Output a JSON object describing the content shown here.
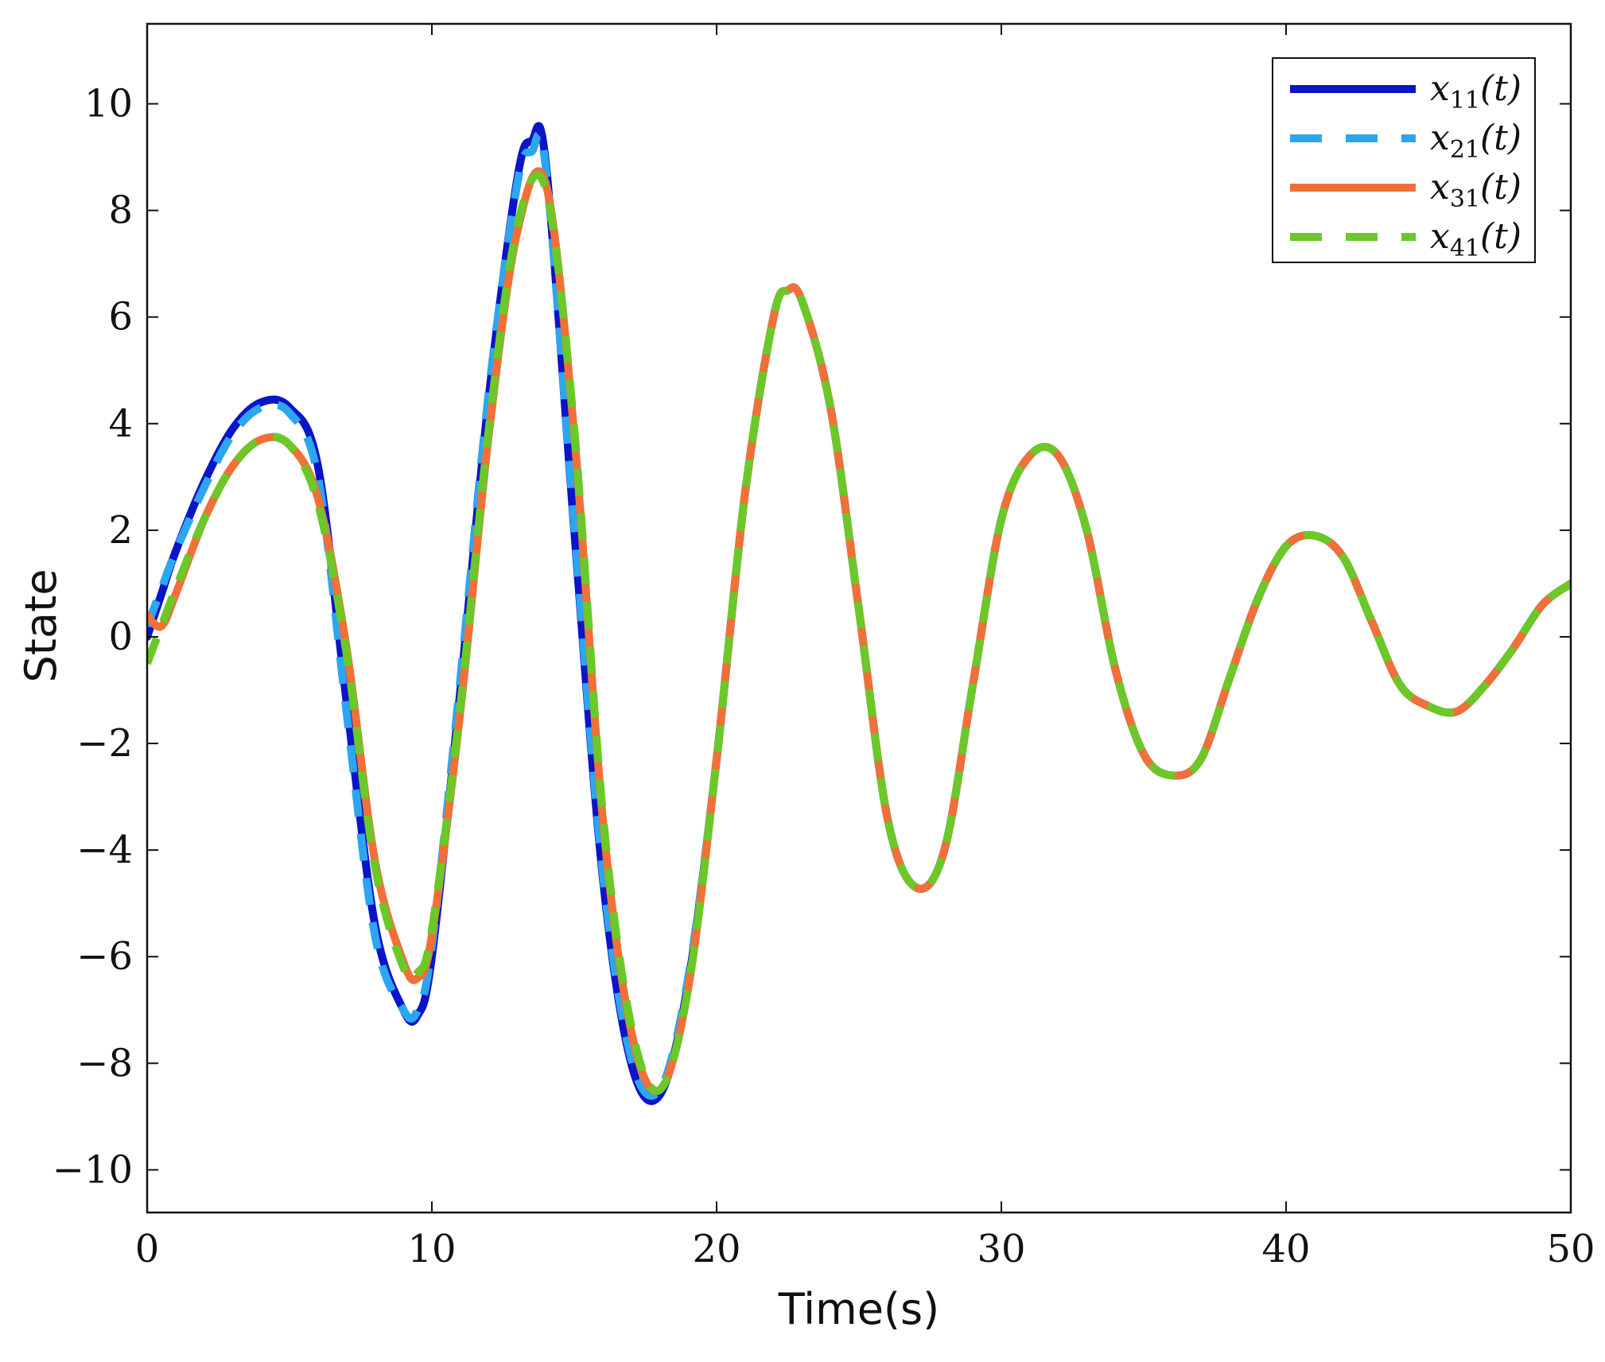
{
  "chart_data": {
    "type": "line",
    "title": "",
    "xlabel": "Time(s)",
    "ylabel": "State",
    "xlim": [
      0,
      50
    ],
    "ylim": [
      -10.8,
      11.5
    ],
    "xticks": [
      0,
      10,
      20,
      30,
      40,
      50
    ],
    "yticks": [
      10,
      8,
      6,
      4,
      2,
      0,
      -2,
      -4,
      -6,
      -8,
      -10
    ],
    "xtick_labels": [
      "0",
      "10",
      "20",
      "30",
      "40",
      "50"
    ],
    "ytick_labels": [
      "10",
      "8",
      "6",
      "4",
      "2",
      "0",
      "−2",
      "−4",
      "−6",
      "−8",
      "−10"
    ],
    "grid": false,
    "legend_position": "top-right",
    "series": [
      {
        "name": "x11(t)",
        "label_var": "x",
        "label_sub": "11",
        "label_arg": "(t)",
        "color": "#0a14c8",
        "dash": "solid",
        "x": [
          0,
          0.5,
          1,
          2,
          3,
          4,
          5,
          6,
          7,
          8,
          9,
          9.5,
          10,
          11,
          12,
          13,
          13.5,
          14,
          15,
          16,
          17,
          18,
          19,
          20,
          21,
          22,
          22.5,
          23,
          24,
          25,
          26,
          27,
          28,
          29,
          30,
          31,
          32,
          33,
          34,
          35,
          36,
          37,
          38,
          39,
          40,
          41,
          42,
          43,
          44,
          45,
          46,
          47,
          48,
          49,
          50
        ],
        "y": [
          0.0,
          0.8,
          1.6,
          2.9,
          3.9,
          4.4,
          4.3,
          3.2,
          -1.2,
          -5.4,
          -7.0,
          -7.1,
          -6.0,
          -1.0,
          4.5,
          8.6,
          9.3,
          8.9,
          2.0,
          -4.5,
          -8.0,
          -8.6,
          -6.5,
          -2.3,
          2.7,
          6.0,
          6.5,
          6.3,
          4.3,
          0.5,
          -3.4,
          -4.7,
          -4.0,
          -0.9,
          2.2,
          3.4,
          3.4,
          2.0,
          -0.6,
          -2.2,
          -2.6,
          -2.3,
          -0.8,
          0.7,
          1.7,
          1.9,
          1.5,
          0.3,
          -0.9,
          -1.3,
          -1.4,
          -0.9,
          -0.2,
          0.6,
          1.0
        ]
      },
      {
        "name": "x21(t)",
        "label_var": "x",
        "label_sub": "21",
        "label_arg": "(t)",
        "color": "#2ca6f0",
        "dash": "dashed",
        "x": [
          0,
          0.5,
          1,
          2,
          3,
          4,
          5,
          6,
          7,
          8,
          9,
          9.5,
          10,
          11,
          12,
          13,
          13.5,
          14,
          15,
          16,
          17,
          18,
          19,
          20,
          21,
          22,
          22.5,
          23,
          24,
          25,
          26,
          27,
          28,
          29,
          30,
          31,
          32,
          33,
          34,
          35,
          36,
          37,
          38,
          39,
          40,
          41,
          42,
          43,
          44,
          45,
          46,
          47,
          48,
          49,
          50
        ],
        "y": [
          0.2,
          0.9,
          1.6,
          2.8,
          3.8,
          4.3,
          4.2,
          3.0,
          -1.4,
          -5.6,
          -7.0,
          -7.0,
          -5.8,
          -0.8,
          4.6,
          8.5,
          9.1,
          8.8,
          2.1,
          -4.4,
          -7.9,
          -8.5,
          -6.4,
          -2.3,
          2.7,
          6.0,
          6.5,
          6.3,
          4.3,
          0.5,
          -3.4,
          -4.7,
          -4.0,
          -0.9,
          2.2,
          3.4,
          3.4,
          2.0,
          -0.6,
          -2.2,
          -2.6,
          -2.3,
          -0.8,
          0.7,
          1.7,
          1.9,
          1.5,
          0.3,
          -0.9,
          -1.3,
          -1.4,
          -0.9,
          -0.2,
          0.6,
          1.0
        ]
      },
      {
        "name": "x31(t)",
        "label_var": "x",
        "label_sub": "31",
        "label_arg": "(t)",
        "color": "#f07038",
        "dash": "solid",
        "x": [
          0,
          0.5,
          1,
          2,
          3,
          4,
          5,
          6,
          7,
          8,
          9,
          9.5,
          10,
          11,
          12,
          13,
          14,
          15,
          16,
          17,
          18,
          19,
          20,
          21,
          22,
          22.5,
          23,
          24,
          25,
          26,
          27,
          28,
          29,
          30,
          31,
          32,
          33,
          34,
          35,
          36,
          37,
          38,
          39,
          40,
          41,
          42,
          43,
          44,
          45,
          46,
          47,
          48,
          49,
          50
        ],
        "y": [
          0.4,
          0.2,
          0.8,
          2.2,
          3.2,
          3.7,
          3.6,
          2.6,
          -0.2,
          -4.2,
          -6.1,
          -6.4,
          -5.6,
          -1.4,
          3.8,
          7.6,
          8.5,
          3.8,
          -3.4,
          -7.4,
          -8.5,
          -6.6,
          -2.3,
          2.7,
          6.0,
          6.5,
          6.3,
          4.3,
          0.5,
          -3.4,
          -4.7,
          -4.0,
          -0.9,
          2.2,
          3.4,
          3.4,
          2.0,
          -0.6,
          -2.2,
          -2.6,
          -2.3,
          -0.8,
          0.7,
          1.7,
          1.9,
          1.5,
          0.3,
          -0.9,
          -1.3,
          -1.4,
          -0.9,
          -0.2,
          0.6,
          1.0
        ]
      },
      {
        "name": "x41(t)",
        "label_var": "x",
        "label_sub": "41",
        "label_arg": "(t)",
        "color": "#6cc828",
        "dash": "dashed",
        "x": [
          0,
          0.5,
          1,
          2,
          3,
          4,
          5,
          6,
          7,
          8,
          9,
          9.5,
          10,
          11,
          12,
          13,
          14,
          15,
          16,
          17,
          18,
          19,
          20,
          21,
          22,
          22.5,
          23,
          24,
          25,
          26,
          27,
          28,
          29,
          30,
          31,
          32,
          33,
          34,
          35,
          36,
          37,
          38,
          39,
          40,
          41,
          42,
          43,
          44,
          45,
          46,
          47,
          48,
          49,
          50
        ],
        "y": [
          -0.5,
          0.2,
          0.9,
          2.2,
          3.2,
          3.7,
          3.6,
          2.5,
          -0.3,
          -4.3,
          -6.2,
          -6.3,
          -5.5,
          -1.3,
          3.9,
          7.7,
          8.4,
          3.9,
          -3.3,
          -7.3,
          -8.5,
          -6.6,
          -2.3,
          2.7,
          6.0,
          6.5,
          6.3,
          4.3,
          0.5,
          -3.4,
          -4.7,
          -4.0,
          -0.9,
          2.2,
          3.4,
          3.4,
          2.0,
          -0.6,
          -2.2,
          -2.6,
          -2.3,
          -0.8,
          0.7,
          1.7,
          1.9,
          1.5,
          0.3,
          -0.9,
          -1.3,
          -1.4,
          -0.9,
          -0.2,
          0.6,
          1.0
        ]
      }
    ]
  }
}
